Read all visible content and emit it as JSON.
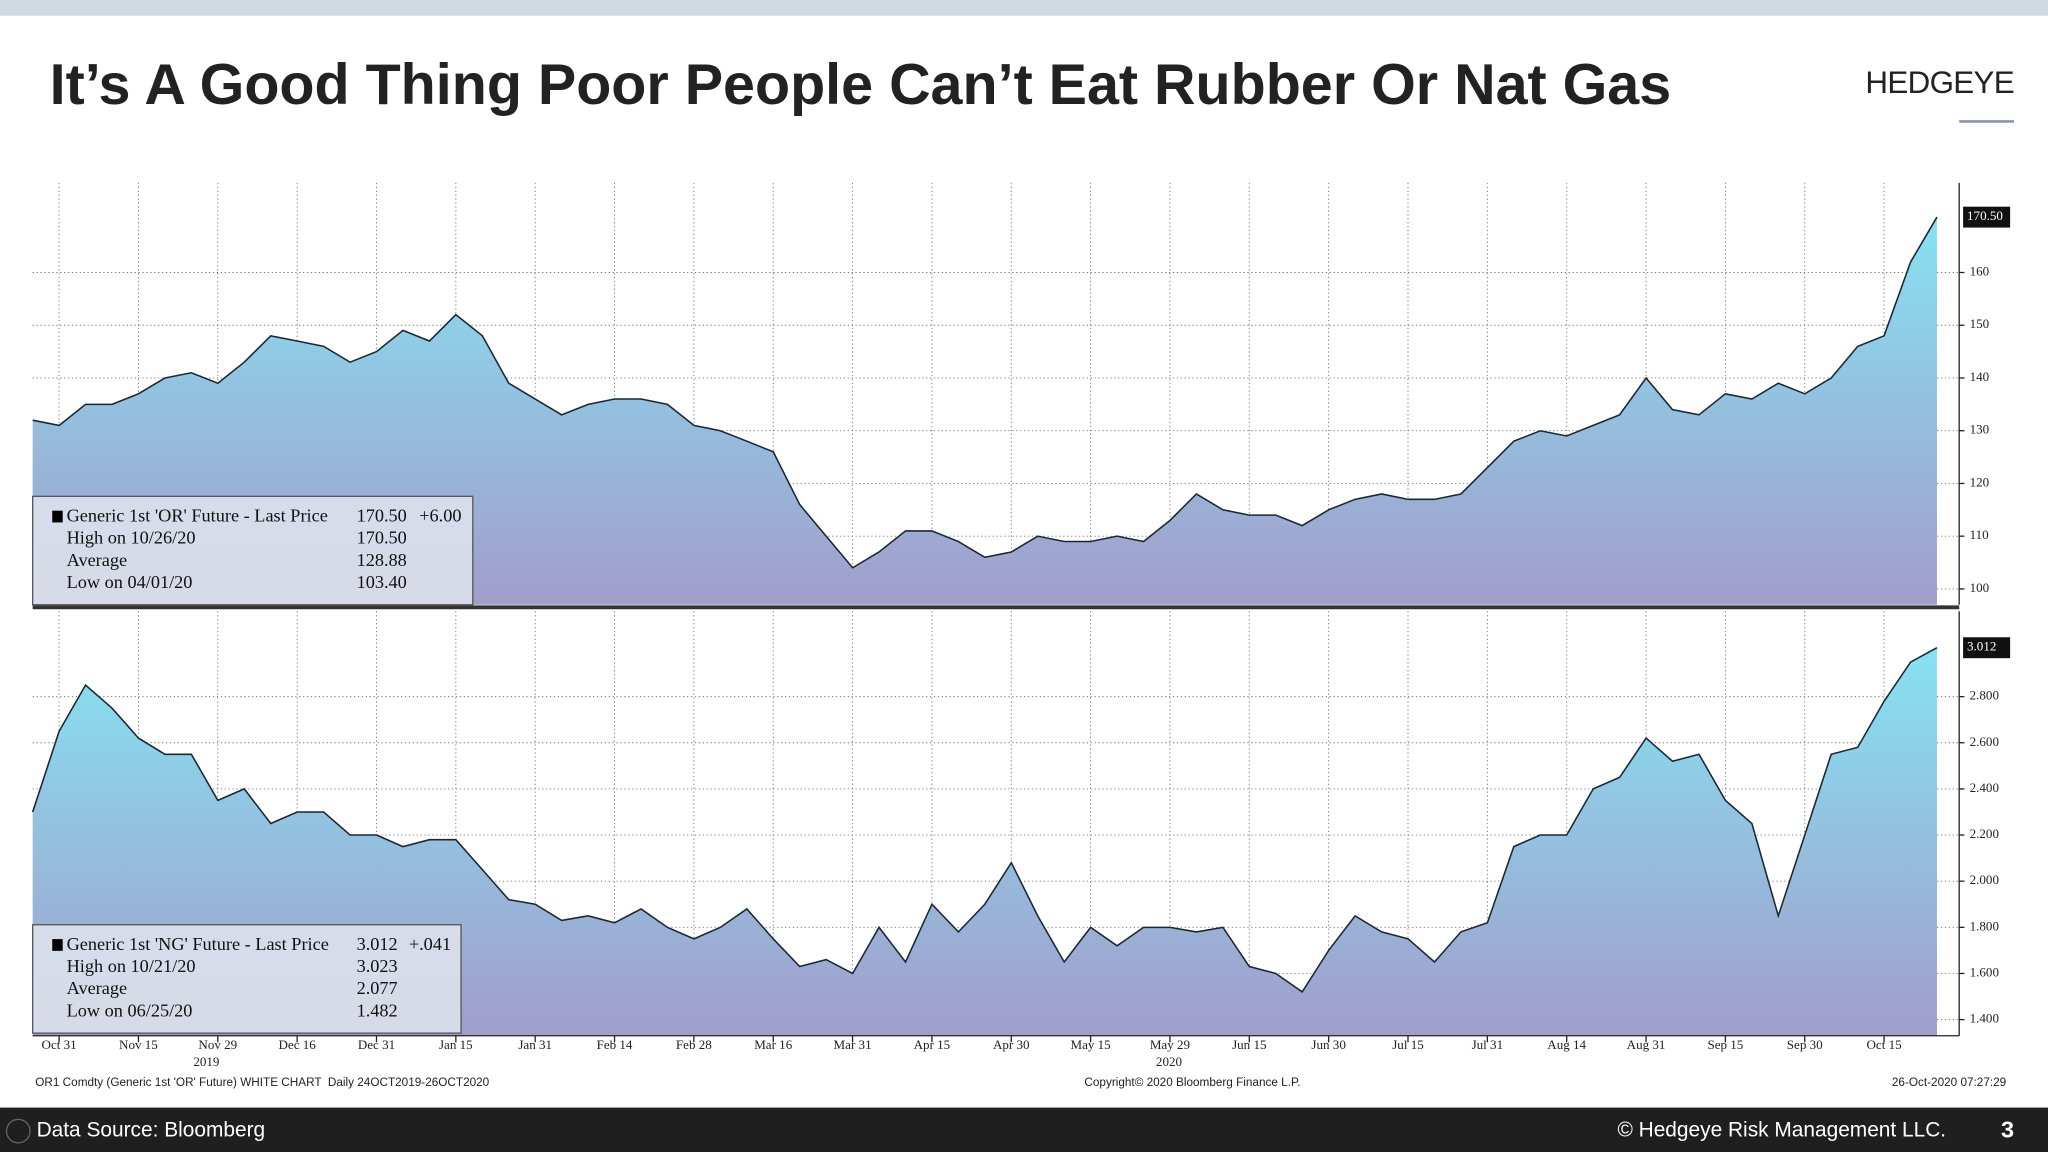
{
  "header": {
    "title": "It’s A Good Thing Poor People Can’t Eat Rubber Or Nat Gas",
    "brand": "HEDGEYE"
  },
  "chart_data": [
    {
      "type": "area",
      "color": "#1b2733",
      "grid": true,
      "ylim": [
        97,
        177
      ],
      "yticks": [
        100,
        110,
        120,
        130,
        140,
        150,
        160
      ],
      "values": [
        132,
        131,
        135,
        135,
        137,
        140,
        141,
        139,
        143,
        148,
        147,
        146,
        143,
        145,
        149,
        147,
        152,
        148,
        139,
        136,
        133,
        135,
        136,
        136,
        135,
        131,
        130,
        128,
        126,
        116,
        110,
        104,
        107,
        111,
        111,
        109,
        106,
        107,
        110,
        109,
        109,
        110,
        109,
        113,
        118,
        115,
        114,
        114,
        112,
        115,
        117,
        118,
        117,
        117,
        118,
        123,
        128,
        130,
        129,
        131,
        133,
        140,
        134,
        133,
        137,
        136,
        139,
        137,
        140,
        146,
        148,
        162,
        170.5
      ],
      "last_label": "170.50",
      "legend": {
        "name": "Generic 1st 'OR' Future - Last Price",
        "last": "170.50",
        "change": "+6.00",
        "rows": [
          [
            "High on 10/26/20",
            "170.50"
          ],
          [
            "Average",
            "128.88"
          ],
          [
            "Low on 04/01/20",
            "103.40"
          ]
        ]
      }
    },
    {
      "type": "area",
      "color": "#1b2733",
      "grid": true,
      "ylim": [
        1.33,
        3.17
      ],
      "yticks": [
        {
          "value": 1.4,
          "label": "1.400"
        },
        {
          "value": 1.6,
          "label": "1.600"
        },
        {
          "value": 1.8,
          "label": "1.800"
        },
        {
          "value": 2.0,
          "label": "2.000"
        },
        {
          "value": 2.2,
          "label": "2.200"
        },
        {
          "value": 2.4,
          "label": "2.400"
        },
        {
          "value": 2.6,
          "label": "2.600"
        },
        {
          "value": 2.8,
          "label": "2.800"
        }
      ],
      "categories": [
        null,
        "Oct 31",
        null,
        null,
        "Nov 15",
        null,
        null,
        "Nov 29",
        null,
        null,
        "Dec 16",
        null,
        null,
        "Dec 31",
        null,
        null,
        "Jan 15",
        null,
        null,
        "Jan 31",
        null,
        null,
        "Feb 14",
        null,
        null,
        "Feb 28",
        null,
        null,
        "Mar 16",
        null,
        null,
        "Mar 31",
        null,
        null,
        "Apr 15",
        null,
        null,
        "Apr 30",
        null,
        null,
        "May 15",
        null,
        null,
        "May 29",
        null,
        null,
        "Jun 15",
        null,
        null,
        "Jun 30",
        null,
        null,
        "Jul 15",
        null,
        null,
        "Jul 31",
        null,
        null,
        "Aug 14",
        null,
        null,
        "Aug 31",
        null,
        null,
        "Sep 15",
        null,
        null,
        "Sep 30",
        null,
        null,
        "Oct 15",
        null,
        null
      ],
      "year_labels": [
        "2019",
        "2020"
      ],
      "values": [
        2.3,
        2.65,
        2.85,
        2.75,
        2.62,
        2.55,
        2.55,
        2.35,
        2.4,
        2.25,
        2.3,
        2.3,
        2.2,
        2.2,
        2.15,
        2.18,
        2.18,
        2.05,
        1.92,
        1.9,
        1.83,
        1.85,
        1.82,
        1.88,
        1.8,
        1.75,
        1.8,
        1.88,
        1.75,
        1.63,
        1.66,
        1.6,
        1.8,
        1.65,
        1.9,
        1.78,
        1.9,
        2.08,
        1.85,
        1.65,
        1.8,
        1.72,
        1.8,
        1.8,
        1.78,
        1.8,
        1.63,
        1.6,
        1.52,
        1.7,
        1.85,
        1.78,
        1.75,
        1.65,
        1.78,
        1.82,
        2.15,
        2.2,
        2.2,
        2.4,
        2.45,
        2.62,
        2.52,
        2.55,
        2.35,
        2.25,
        1.85,
        2.2,
        2.55,
        2.58,
        2.78,
        2.95,
        3.012
      ],
      "last_label": "3.012",
      "legend": {
        "name": "Generic 1st 'NG' Future - Last Price",
        "last": "3.012",
        "change": "+.041",
        "rows": [
          [
            "High on 10/21/20",
            "3.023"
          ],
          [
            "Average",
            "2.077"
          ],
          [
            "Low on 06/25/20",
            "1.482"
          ]
        ]
      }
    }
  ],
  "notes": {
    "left": "OR1 Comdty (Generic 1st 'OR' Future) WHITE CHART  Daily 24OCT2019-26OCT2020",
    "center": "Copyright© 2020 Bloomberg Finance L.P.",
    "right": "26-Oct-2020 07:27:29"
  },
  "footer": {
    "source": "Data Source: Bloomberg",
    "copyright": "© Hedgeye Risk Management LLC.",
    "page": "3"
  }
}
